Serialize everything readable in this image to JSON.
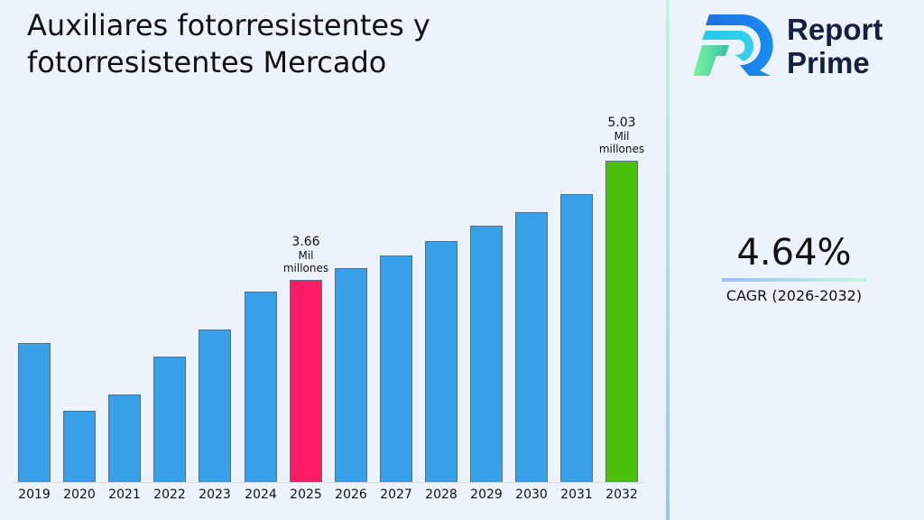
{
  "title": "Auxiliares fotorresistentes y fotorresistentes Mercado",
  "brand": {
    "line1": "Report",
    "line2": "Prime",
    "logo_icon": "report-prime-logo-icon"
  },
  "cagr": {
    "value": "4.64%",
    "label": "CAGR (2026-2032)"
  },
  "colors": {
    "default_bar": "#38a0e8",
    "highlight_2025": "#fe1a64",
    "highlight_2032": "#4cbe0c",
    "background": "#ecf3fd"
  },
  "chart_data": {
    "type": "bar",
    "title": "Auxiliares fotorresistentes y fotorresistentes Mercado",
    "xlabel": "",
    "ylabel": "",
    "unit": "Mil millones",
    "grid": false,
    "legend": "none",
    "categories": [
      "2019",
      "2020",
      "2021",
      "2022",
      "2023",
      "2024",
      "2025",
      "2026",
      "2027",
      "2028",
      "2029",
      "2030",
      "2031",
      "2032"
    ],
    "values": [
      2.93,
      2.16,
      2.34,
      2.78,
      3.09,
      3.53,
      3.66,
      3.79,
      3.94,
      4.11,
      4.28,
      4.44,
      4.65,
      5.03
    ],
    "annotations": [
      {
        "category": "2025",
        "value": "3.66",
        "unit_line1": "Mil",
        "unit_line2": "millones"
      },
      {
        "category": "2032",
        "value": "5.03",
        "unit_line1": "Mil",
        "unit_line2": "millones"
      }
    ],
    "highlight": {
      "2025": "#fe1a64",
      "2032": "#4cbe0c"
    }
  }
}
